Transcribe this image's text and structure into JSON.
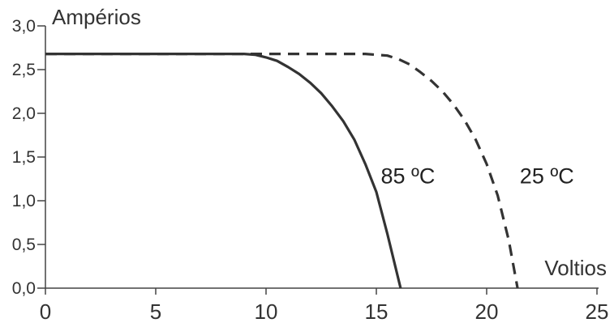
{
  "chart_data": {
    "type": "line",
    "xlabel": "Voltios",
    "ylabel": "Ampérios",
    "xlim": [
      0,
      25
    ],
    "ylim": [
      0,
      3.0
    ],
    "x_ticks": [
      "0",
      "5",
      "10",
      "15",
      "20",
      "25"
    ],
    "x_tick_values": [
      0,
      5,
      10,
      15,
      20,
      25
    ],
    "y_ticks": [
      "0,0",
      "0,5",
      "1,0",
      "1,5",
      "2,0",
      "2,5",
      "3,0"
    ],
    "y_tick_values": [
      0,
      0.5,
      1.0,
      1.5,
      2.0,
      2.5,
      3.0
    ],
    "grid": false,
    "series": [
      {
        "name": "85 ºC",
        "line_style": "solid",
        "color": "#333333",
        "points": [
          [
            0,
            2.68
          ],
          [
            9,
            2.68
          ],
          [
            9.5,
            2.67
          ],
          [
            10,
            2.64
          ],
          [
            10.5,
            2.6
          ],
          [
            11,
            2.53
          ],
          [
            11.5,
            2.45
          ],
          [
            12,
            2.35
          ],
          [
            12.5,
            2.23
          ],
          [
            13,
            2.08
          ],
          [
            13.5,
            1.91
          ],
          [
            14,
            1.7
          ],
          [
            14.5,
            1.42
          ],
          [
            15,
            1.1
          ],
          [
            15.5,
            0.62
          ],
          [
            16.1,
            0.0
          ]
        ]
      },
      {
        "name": "25 ºC",
        "line_style": "dashed",
        "color": "#333333",
        "points": [
          [
            0,
            2.68
          ],
          [
            14.5,
            2.68
          ],
          [
            15.5,
            2.66
          ],
          [
            16,
            2.62
          ],
          [
            16.5,
            2.56
          ],
          [
            17,
            2.47
          ],
          [
            17.5,
            2.37
          ],
          [
            18,
            2.25
          ],
          [
            18.5,
            2.1
          ],
          [
            19,
            1.92
          ],
          [
            19.5,
            1.7
          ],
          [
            20,
            1.42
          ],
          [
            20.5,
            1.06
          ],
          [
            21,
            0.55
          ],
          [
            21.4,
            0.0
          ]
        ]
      }
    ],
    "labels": [
      {
        "text": "85 ºC",
        "x": 15.2,
        "y": 1.2
      },
      {
        "text": "25 ºC",
        "x": 21.5,
        "y": 1.2
      }
    ]
  }
}
